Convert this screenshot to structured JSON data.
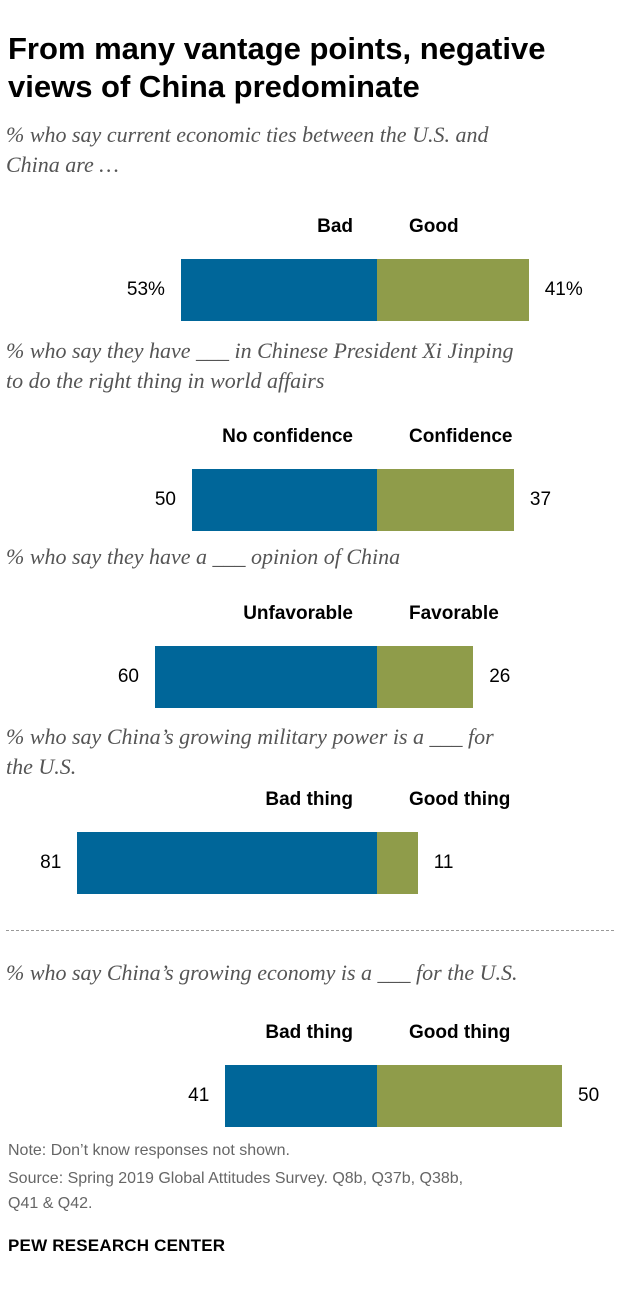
{
  "header": {
    "title_line1": "From many vantage points, negative",
    "title_line2": "views of China predominate"
  },
  "colors": {
    "negative": "#006699",
    "positive": "#8f9c4a"
  },
  "chart_data": [
    {
      "type": "bar",
      "subtitle_line1": "% who say current economic ties between the U.S. and",
      "subtitle_line2": "China are …",
      "series": [
        {
          "name": "Bad",
          "values": [
            53
          ],
          "label": "53%"
        },
        {
          "name": "Good",
          "values": [
            41
          ],
          "label": "41%"
        }
      ]
    },
    {
      "type": "bar",
      "subtitle_line1": "% who say they have ___ in Chinese President Xi Jinping",
      "subtitle_line2": "to do the right thing in world affairs",
      "series": [
        {
          "name": "No confidence",
          "values": [
            50
          ],
          "label": "50"
        },
        {
          "name": "Confidence",
          "values": [
            37
          ],
          "label": "37"
        }
      ]
    },
    {
      "type": "bar",
      "subtitle_line1": "% who say they have a ___ opinion of China",
      "subtitle_line2": "",
      "series": [
        {
          "name": "Unfavorable",
          "values": [
            60
          ],
          "label": "60"
        },
        {
          "name": "Favorable",
          "values": [
            26
          ],
          "label": "26"
        }
      ]
    },
    {
      "type": "bar",
      "subtitle_line1": "% who say China’s growing military power is a ___ for",
      "subtitle_line2": "the U.S.",
      "series": [
        {
          "name": "Bad thing",
          "values": [
            81
          ],
          "label": "81"
        },
        {
          "name": "Good thing",
          "values": [
            11
          ],
          "label": "11"
        }
      ]
    },
    {
      "type": "bar",
      "subtitle_line1": "% who say China’s growing economy is a ___ for the U.S.",
      "subtitle_line2": "",
      "series": [
        {
          "name": "Bad thing",
          "values": [
            41
          ],
          "label": "41"
        },
        {
          "name": "Good thing",
          "values": [
            50
          ],
          "label": "50"
        }
      ]
    }
  ],
  "footer": {
    "note": "Note: Don’t know responses not shown.",
    "source_line1": "Source: Spring 2019 Global Attitudes Survey. Q8b, Q37b, Q38b,",
    "source_line2": "Q41 & Q42.",
    "brand": "PEW RESEARCH CENTER"
  }
}
